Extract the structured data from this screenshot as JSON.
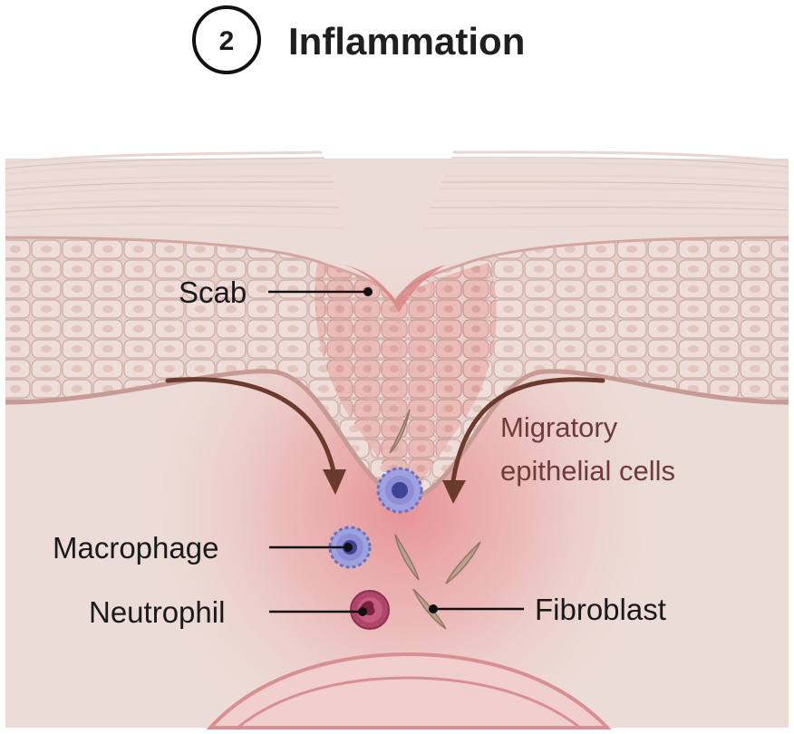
{
  "title": {
    "number": "2",
    "text": "Inflammation"
  },
  "labels": {
    "scab": "Scab",
    "migratory_line1": "Migratory",
    "migratory_line2": "epithelial cells",
    "macrophage": "Macrophage",
    "neutrophil": "Neutrophil",
    "fibroblast": "Fibroblast"
  },
  "colors": {
    "skin_layer": "#e8d2cc",
    "dermis": "#ecdcd7",
    "wound_red": "#e08a8a",
    "macrophage": "#8c8fd4",
    "neutrophil": "#b0456a",
    "fibroblast": "#b9a08f",
    "arrow": "#6b3a2e"
  }
}
